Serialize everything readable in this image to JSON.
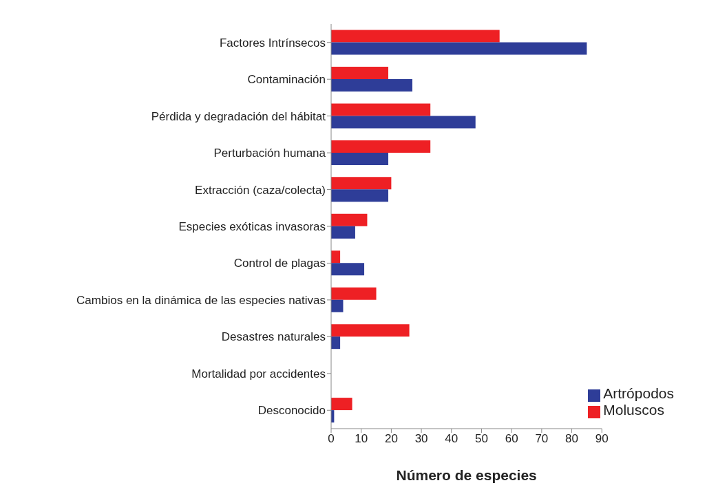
{
  "chart_data": {
    "type": "bar",
    "orientation": "horizontal",
    "xlabel": "Número de especies",
    "categories": [
      "Factores Intrínsecos",
      "Contaminación",
      "Pérdida y degradación del hábitat",
      "Perturbación humana",
      "Extracción (caza/colecta)",
      "Especies exóticas invasoras",
      "Control de plagas",
      "Cambios en la dinámica de las especies nativas",
      "Desastres naturales",
      "Mortalidad por accidentes",
      "Desconocido"
    ],
    "series": [
      {
        "name": "Moluscos",
        "color": "#ee2024",
        "values": [
          56,
          19,
          33,
          33,
          20,
          12,
          3,
          15,
          26,
          0,
          7
        ]
      },
      {
        "name": "Artrópodos",
        "color": "#2e3d98",
        "values": [
          85,
          27,
          48,
          19,
          19,
          8,
          11,
          4,
          3,
          0,
          1
        ]
      }
    ],
    "xlim": [
      0,
      90
    ],
    "xticks": [
      0,
      10,
      20,
      30,
      40,
      50,
      60,
      70,
      80,
      90
    ],
    "grid": false,
    "legend": "bottom right"
  }
}
